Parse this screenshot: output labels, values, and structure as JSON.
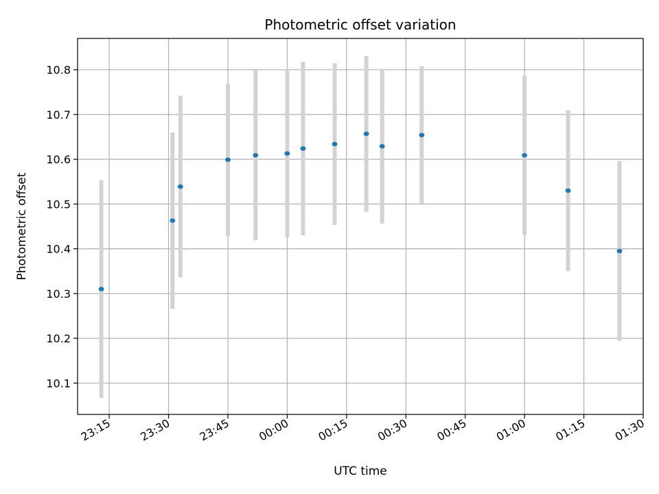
{
  "chart_data": {
    "type": "scatter",
    "title": "Photometric offset variation",
    "xlabel": "UTC time",
    "ylabel": "Photometric offset",
    "x_axis": {
      "unit": "time",
      "start_day": "day 1",
      "range": [
        "23:07",
        "01:30 (+1 day)"
      ],
      "ticks": [
        "23:15",
        "23:30",
        "23:45",
        "00:00",
        "00:15",
        "00:30",
        "00:45",
        "01:00",
        "01:15",
        "01:30"
      ]
    },
    "ylim": [
      10.03,
      10.87
    ],
    "y_ticks": [
      "10.1",
      "10.2",
      "10.3",
      "10.4",
      "10.5",
      "10.6",
      "10.7",
      "10.8"
    ],
    "grid": true,
    "marker_color": "#1f77b4",
    "errorbar_color": "#d3d3d3",
    "points": [
      {
        "time": "23:13",
        "y": 10.31,
        "err": 0.243
      },
      {
        "time": "23:31",
        "y": 10.463,
        "err": 0.197
      },
      {
        "time": "23:33",
        "y": 10.539,
        "err": 0.203
      },
      {
        "time": "23:45",
        "y": 10.599,
        "err": 0.17
      },
      {
        "time": "23:52",
        "y": 10.609,
        "err": 0.19
      },
      {
        "time": "00:00",
        "y": 10.613,
        "err": 0.187
      },
      {
        "time": "00:04",
        "y": 10.624,
        "err": 0.194
      },
      {
        "time": "00:12",
        "y": 10.634,
        "err": 0.181
      },
      {
        "time": "00:20",
        "y": 10.657,
        "err": 0.174
      },
      {
        "time": "00:24",
        "y": 10.629,
        "err": 0.173
      },
      {
        "time": "00:34",
        "y": 10.654,
        "err": 0.154
      },
      {
        "time": "01:00",
        "y": 10.609,
        "err": 0.178
      },
      {
        "time": "01:11",
        "y": 10.53,
        "err": 0.18
      },
      {
        "time": "01:24",
        "y": 10.395,
        "err": 0.201
      }
    ]
  }
}
